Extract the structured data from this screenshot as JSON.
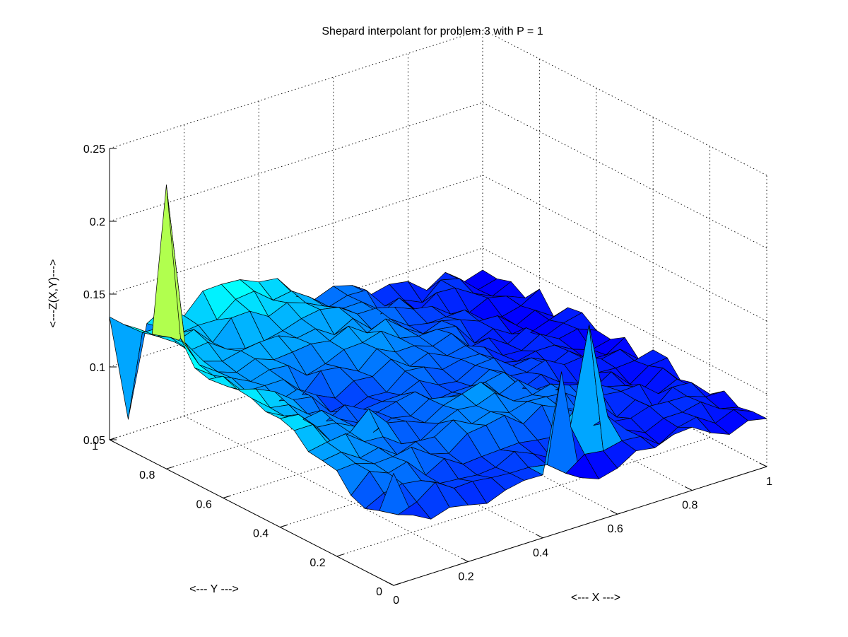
{
  "chart_data": {
    "type": "surface",
    "title": "Shepard interpolant for problem 3 with P = 1",
    "xlabel": "<--- X --->",
    "ylabel": "<--- Y --->",
    "zlabel": "<---Z(X,Y)--->",
    "xlim": [
      0,
      1
    ],
    "ylim": [
      0,
      1
    ],
    "zlim": [
      0.05,
      0.25
    ],
    "x_ticks": [
      "0",
      "0.2",
      "0.4",
      "0.6",
      "0.8",
      "1"
    ],
    "y_ticks": [
      "0",
      "0.2",
      "0.4",
      "0.6",
      "0.8",
      "1"
    ],
    "z_ticks": [
      "0.05",
      "0.1",
      "0.15",
      "0.2",
      "0.25"
    ],
    "grid": true,
    "colormap": "jet",
    "grid_points": 21,
    "features": [
      {
        "x": 0.0,
        "y": 0.8,
        "z": 0.245
      },
      {
        "x": 0.45,
        "y": 0.0,
        "z": 0.16
      },
      {
        "x": 0.6,
        "y": 0.1,
        "z": 0.17
      },
      {
        "x": 0.05,
        "y": 1.0,
        "z": 0.06
      },
      {
        "x": 0.2,
        "y": 0.35,
        "z": 0.12
      }
    ]
  }
}
